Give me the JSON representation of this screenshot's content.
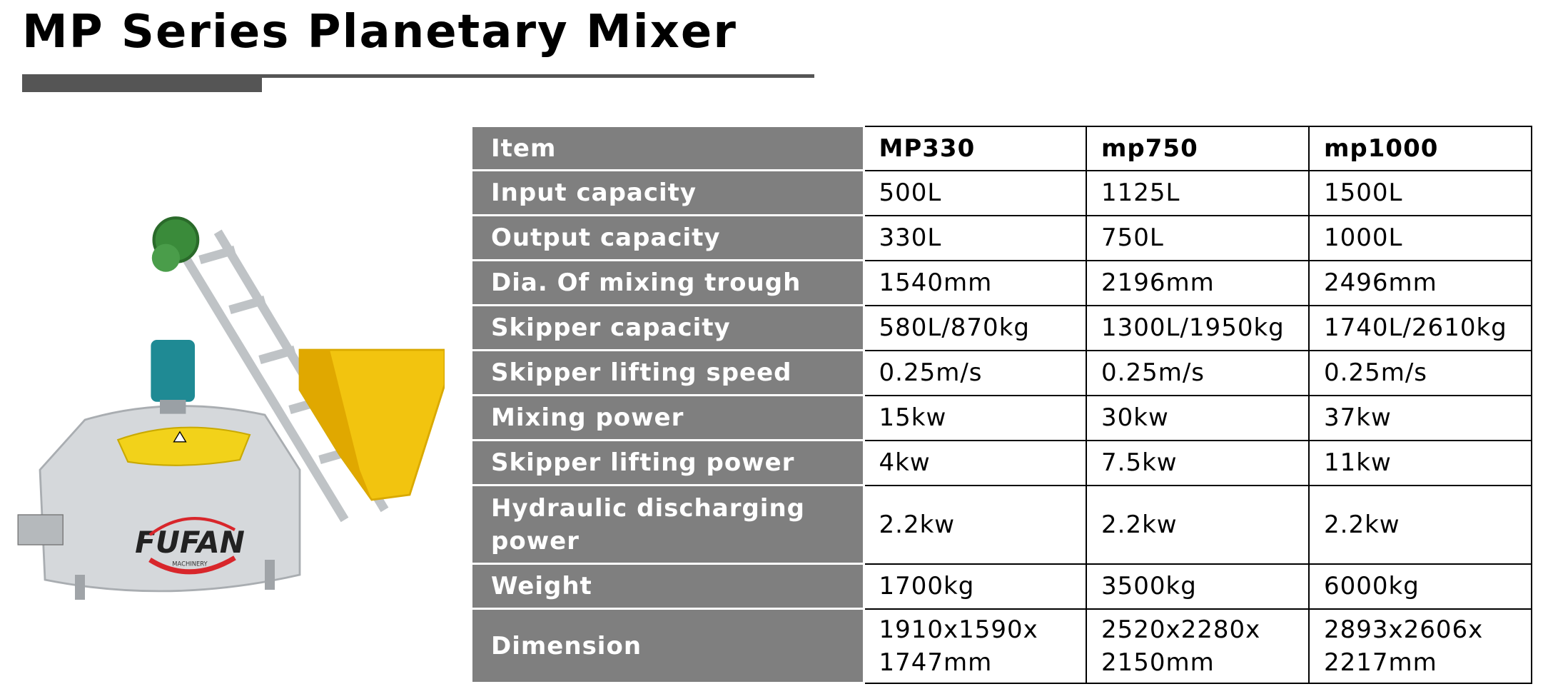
{
  "header": {
    "title": "MP Series Planetary Mixer"
  },
  "image": {
    "logo": "FUFAN",
    "logo_sub": "MACHINERY"
  },
  "table": {
    "columns": [
      "Item",
      "MP330",
      "mp750",
      "mp1000"
    ],
    "rows": [
      [
        "Input capacity",
        "500L",
        "1125L",
        "1500L"
      ],
      [
        "Output capacity",
        "330L",
        "750L",
        "1000L"
      ],
      [
        "Dia. Of mixing trough",
        "1540mm",
        "2196mm",
        "2496mm"
      ],
      [
        "Skipper capacity",
        "580L/870kg",
        "1300L/1950kg",
        "1740L/2610kg"
      ],
      [
        "Skipper lifting speed",
        "0.25m/s",
        "0.25m/s",
        "0.25m/s"
      ],
      [
        "Mixing power",
        "15kw",
        "30kw",
        "37kw"
      ],
      [
        "Skipper lifting power",
        "4kw",
        "7.5kw",
        "11kw"
      ],
      [
        "Hydraulic discharging power",
        "2.2kw",
        "2.2kw",
        "2.2kw"
      ],
      [
        "Weight",
        "1700kg",
        "3500kg",
        "6000kg"
      ],
      [
        "Dimension",
        "1910x1590x\n1747mm",
        "2520x2280x\n2150mm",
        "2893x2606x\n2217mm"
      ]
    ]
  }
}
